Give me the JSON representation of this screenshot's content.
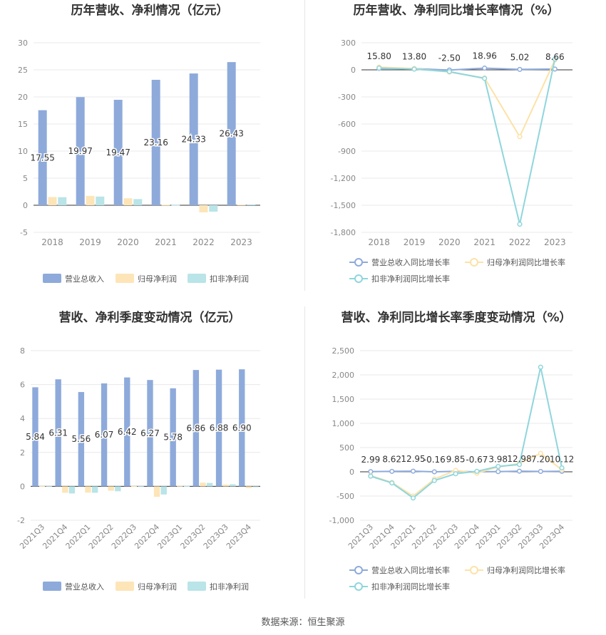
{
  "footer": {
    "source": "数据来源：恒生聚源"
  },
  "chart_data": [
    {
      "type": "bar",
      "title": "历年营收、净利情况（亿元）",
      "categories": [
        "2018",
        "2019",
        "2020",
        "2021",
        "2022",
        "2023"
      ],
      "yticks": [
        "30",
        "25",
        "20",
        "15",
        "10",
        "5",
        "0",
        "-5"
      ],
      "ylim": [
        -5,
        30
      ],
      "series": [
        {
          "name": "营业总收入",
          "color": "#8eaadb",
          "values": [
            17.55,
            19.97,
            19.47,
            23.16,
            24.33,
            26.43
          ],
          "labels": [
            "17.55",
            "19.97",
            "19.47",
            "23.16",
            "24.33",
            "26.43"
          ]
        },
        {
          "name": "归母净利润",
          "color": "#fde5b8",
          "values": [
            1.52,
            1.73,
            1.29,
            0.1,
            -1.31,
            0.12
          ]
        },
        {
          "name": "扣非净利润",
          "color": "#b9e4e8",
          "values": [
            1.49,
            1.6,
            1.14,
            0.05,
            -1.18,
            0.16
          ]
        }
      ],
      "legend_position": "bottom",
      "grid": true
    },
    {
      "type": "line",
      "title": "历年营收、净利同比增长率情况（%）",
      "categories": [
        "2018",
        "2019",
        "2020",
        "2021",
        "2022",
        "2023"
      ],
      "yticks": [
        "300",
        "0",
        "-300",
        "-600",
        "-900",
        "-1,200",
        "-1,500",
        "-1,800"
      ],
      "ylim": [
        -1800,
        300
      ],
      "series": [
        {
          "name": "营业总收入同比增长率",
          "color": "#8eaadb",
          "values": [
            15.8,
            13.8,
            -2.5,
            18.96,
            5.02,
            8.66
          ],
          "labels": [
            "15.80",
            "13.80",
            "-2.50",
            "18.96",
            "5.02",
            "8.66"
          ]
        },
        {
          "name": "归母净利润同比增长率",
          "color": "#fde2a8",
          "values": [
            30,
            14,
            -25,
            -90,
            -740,
            110
          ]
        },
        {
          "name": "扣非净利润同比增长率",
          "color": "#8fd6dc",
          "values": [
            20,
            8,
            -20,
            -95,
            -1710,
            120
          ]
        }
      ],
      "legend_position": "bottom",
      "grid": true
    },
    {
      "type": "bar",
      "title": "营收、净利季度变动情况（亿元）",
      "categories": [
        "2021Q3",
        "2021Q4",
        "2022Q1",
        "2022Q2",
        "2022Q3",
        "2022Q4",
        "2023Q1",
        "2023Q2",
        "2023Q3",
        "2023Q4"
      ],
      "yticks": [
        "8",
        "6",
        "4",
        "2",
        "0",
        "-2"
      ],
      "ylim": [
        -2,
        8
      ],
      "series": [
        {
          "name": "营业总收入",
          "color": "#8eaadb",
          "values": [
            5.84,
            6.31,
            5.56,
            6.07,
            6.42,
            6.27,
            5.78,
            6.86,
            6.88,
            6.9
          ],
          "labels": [
            "5.84",
            "6.31",
            "5.56",
            "6.07",
            "6.42",
            "6.27",
            "5.78",
            "6.86",
            "6.88",
            "6.90"
          ]
        },
        {
          "name": "归母净利润",
          "color": "#fde5b8",
          "values": [
            0.02,
            -0.38,
            -0.37,
            -0.26,
            0.02,
            -0.62,
            0.03,
            0.22,
            0.1,
            -0.1
          ]
        },
        {
          "name": "扣非净利润",
          "color": "#b9e4e8",
          "values": [
            0.01,
            -0.42,
            -0.38,
            -0.29,
            0.01,
            -0.48,
            0.02,
            0.2,
            0.12,
            -0.05
          ]
        }
      ],
      "legend_position": "bottom",
      "grid": true
    },
    {
      "type": "line",
      "title": "营收、净利同比增长率季度变动情况（%）",
      "categories": [
        "2021Q3",
        "2021Q4",
        "2022Q1",
        "2022Q2",
        "2022Q3",
        "2022Q4",
        "2023Q1",
        "2023Q2",
        "2023Q3",
        "2023Q4"
      ],
      "yticks": [
        "2,500",
        "2,000",
        "1,500",
        "1,000",
        "500",
        "0",
        "-500",
        "-1,000"
      ],
      "ylim": [
        -1000,
        2500
      ],
      "series": [
        {
          "name": "营业总收入同比增长率",
          "color": "#8eaadb",
          "values": [
            2.99,
            8.62,
            12.95,
            -0.16,
            9.85,
            -0.67,
            3.98,
            12.98,
            7.2,
            10.12
          ],
          "labels": [
            "2.99",
            "8.62",
            "12.95",
            "-0.16",
            "9.85",
            "-0.67",
            "3.98",
            "12.98",
            "7.20",
            "10.12"
          ]
        },
        {
          "name": "归母净利润同比增长率",
          "color": "#fde2a8",
          "values": [
            -80,
            -220,
            -500,
            -150,
            30,
            -30,
            100,
            170,
            380,
            40
          ]
        },
        {
          "name": "扣非净利润同比增长率",
          "color": "#8fd6dc",
          "values": [
            -90,
            -230,
            -540,
            -180,
            -40,
            10,
            110,
            150,
            2160,
            80
          ]
        }
      ],
      "legend_position": "bottom",
      "grid": true
    }
  ]
}
